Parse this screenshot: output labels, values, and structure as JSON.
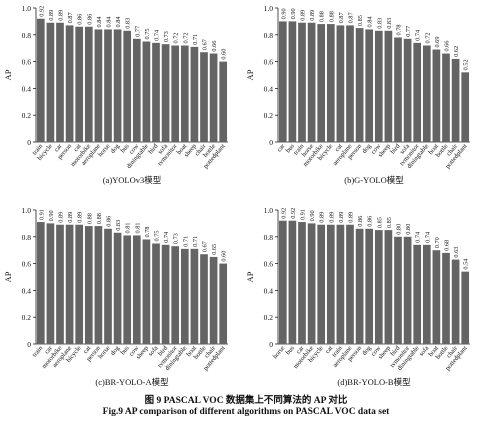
{
  "figure": {
    "caption_zh": "图 9    PASCAL VOC 数据集上不同算法的 AP 对比",
    "caption_en": "Fig.9    AP comparison of different algorithms on PASCAL VOC data set"
  },
  "chart_data": [
    {
      "type": "bar",
      "subtitle": "(a)YOLOv3模型",
      "ylabel": "AP",
      "ylim": [
        0,
        1.0
      ],
      "yticks": [
        "0",
        "0.2",
        "0.4",
        "0.6",
        "0.8",
        "1.0"
      ],
      "categories": [
        "train",
        "bicycle",
        "car",
        "person",
        "cat",
        "motorbike",
        "aeroplane",
        "horse",
        "dog",
        "bus",
        "cow",
        "diningtable",
        "bird",
        "sofa",
        "tvmonitor",
        "boat",
        "sheep",
        "chair",
        "bottle",
        "pottedplant"
      ],
      "values": [
        0.92,
        0.89,
        0.89,
        0.87,
        0.86,
        0.86,
        0.84,
        0.84,
        0.84,
        0.83,
        0.77,
        0.75,
        0.74,
        0.73,
        0.72,
        0.72,
        0.71,
        0.67,
        0.66,
        0.6
      ],
      "value_labels": [
        "0.92",
        "0.89",
        "0.89",
        "0.87",
        "0.86",
        "0.86",
        "0.84",
        "0.84",
        "0.84",
        "0.83",
        "0.77",
        "0.75",
        "0.74",
        "0.73",
        "0.72",
        "0.72",
        "0.71",
        "0.67",
        "0.66",
        "0.60"
      ],
      "bar_color": "#646464"
    },
    {
      "type": "bar",
      "subtitle": "(b)G-YOLO模型",
      "ylabel": "AP",
      "ylim": [
        0,
        1.0
      ],
      "yticks": [
        "0",
        "0.2",
        "0.4",
        "0.6",
        "0.8",
        "1.0"
      ],
      "categories": [
        "car",
        "bus",
        "train",
        "horse",
        "motorbike",
        "bicycle",
        "cat",
        "aeroplane",
        "person",
        "dog",
        "cow",
        "sheep",
        "bird",
        "sofa",
        "tvmonitor",
        "diningtable",
        "boat",
        "bottle",
        "chair",
        "pottedplant"
      ],
      "values": [
        0.9,
        0.9,
        0.89,
        0.89,
        0.88,
        0.88,
        0.87,
        0.87,
        0.85,
        0.84,
        0.83,
        0.83,
        0.78,
        0.77,
        0.74,
        0.72,
        0.69,
        0.66,
        0.62,
        0.52
      ],
      "value_labels": [
        "0.90",
        "0.90",
        "0.89",
        "0.89",
        "0.88",
        "0.88",
        "0.87",
        "0.87",
        "0.85",
        "0.84",
        "0.83",
        "0.83",
        "0.78",
        "0.77",
        "0.74",
        "0.72",
        "0.69",
        "0.66",
        "0.62",
        "0.52"
      ],
      "bar_color": "#646464"
    },
    {
      "type": "bar",
      "subtitle": "(c)BR-YOLO-A模型",
      "ylabel": "AP",
      "ylim": [
        0,
        1.0
      ],
      "yticks": [
        "0",
        "0.2",
        "0.4",
        "0.6",
        "0.8",
        "1.0"
      ],
      "categories": [
        "train",
        "car",
        "motorbike",
        "aeroplane",
        "bicycle",
        "cat",
        "person",
        "horse",
        "dog",
        "bus",
        "cow",
        "sheep",
        "sofa",
        "bird",
        "tvmonitor",
        "diningtable",
        "boat",
        "bottle",
        "chair",
        "pottedplant"
      ],
      "values": [
        0.91,
        0.9,
        0.89,
        0.89,
        0.89,
        0.88,
        0.88,
        0.86,
        0.83,
        0.81,
        0.81,
        0.78,
        0.75,
        0.74,
        0.73,
        0.71,
        0.71,
        0.67,
        0.65,
        0.6
      ],
      "value_labels": [
        "0.91",
        "0.90",
        "0.89",
        "0.89",
        "0.89",
        "0.88",
        "0.88",
        "0.86",
        "0.83",
        "0.81",
        "0.81",
        "0.78",
        "0.75",
        "0.74",
        "0.73",
        "0.71",
        "0.71",
        "0.67",
        "0.65",
        "0.60"
      ],
      "bar_color": "#646464"
    },
    {
      "type": "bar",
      "subtitle": "(d)BR-YOLO-B模型",
      "ylabel": "AP",
      "ylim": [
        0,
        1.0
      ],
      "yticks": [
        "0",
        "0.2",
        "0.4",
        "0.6",
        "0.8",
        "1.0"
      ],
      "categories": [
        "horse",
        "bus",
        "car",
        "motorbike",
        "bicycle",
        "cat",
        "train",
        "aeroplane",
        "person",
        "dog",
        "cow",
        "sheep",
        "bird",
        "tvmonitor",
        "diningtable",
        "sofa",
        "boat",
        "bottle",
        "chair",
        "pottedplant"
      ],
      "values": [
        0.92,
        0.92,
        0.91,
        0.9,
        0.89,
        0.89,
        0.89,
        0.89,
        0.86,
        0.86,
        0.85,
        0.85,
        0.8,
        0.8,
        0.74,
        0.74,
        0.7,
        0.68,
        0.63,
        0.54
      ],
      "value_labels": [
        "0.92",
        "0.92",
        "0.91",
        "0.90",
        "0.89",
        "0.89",
        "0.89",
        "0.89",
        "0.86",
        "0.86",
        "0.85",
        "0.85",
        "0.80",
        "0.80",
        "0.74",
        "0.74",
        "0.70",
        "0.68",
        "0.63",
        "0.54"
      ],
      "bar_color": "#646464"
    }
  ]
}
